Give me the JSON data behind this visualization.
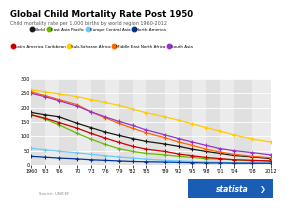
{
  "title": "Global Child Mortality Rate Post 1950",
  "subtitle": "Child mortality rate per 1,000 births by world region 1960-2012",
  "years": [
    1960,
    1963,
    1966,
    1970,
    1973,
    1976,
    1979,
    1982,
    1985,
    1989,
    1992,
    1995,
    1998,
    2001,
    2004,
    2008,
    2012
  ],
  "series": {
    "World": {
      "color": "#1a1a1a",
      "values": [
        183,
        175,
        168,
        145,
        130,
        115,
        103,
        92,
        82,
        73,
        65,
        55,
        47,
        40,
        33,
        28,
        22
      ]
    },
    "East Asia Pacific": {
      "color": "#66bb00",
      "values": [
        175,
        160,
        140,
        110,
        90,
        72,
        57,
        47,
        40,
        35,
        30,
        26,
        22,
        20,
        18,
        15,
        13
      ]
    },
    "Europe Central Asia": {
      "color": "#66ccff",
      "values": [
        58,
        53,
        48,
        42,
        37,
        32,
        28,
        24,
        20,
        16,
        14,
        12,
        10,
        9,
        8,
        7,
        6
      ]
    },
    "North America": {
      "color": "#003399",
      "values": [
        30,
        27,
        24,
        21,
        18,
        16,
        14,
        12,
        11,
        10,
        9,
        8,
        7,
        7,
        6,
        6,
        6
      ]
    },
    "Latin America Caribbean": {
      "color": "#cc0000",
      "values": [
        175,
        163,
        148,
        128,
        110,
        94,
        79,
        65,
        55,
        47,
        38,
        32,
        26,
        22,
        18,
        16,
        14
      ]
    },
    "Sub-Saharan Africa": {
      "color": "#ffcc00",
      "values": [
        262,
        255,
        248,
        238,
        228,
        218,
        208,
        195,
        182,
        168,
        156,
        143,
        130,
        118,
        105,
        90,
        80
      ]
    },
    "Middle East North Africa": {
      "color": "#ff6600",
      "values": [
        255,
        242,
        228,
        210,
        185,
        165,
        145,
        128,
        112,
        95,
        80,
        68,
        55,
        45,
        37,
        30,
        25
      ]
    },
    "South Asia": {
      "color": "#9933cc",
      "values": [
        250,
        238,
        224,
        205,
        185,
        168,
        152,
        138,
        122,
        105,
        92,
        80,
        68,
        57,
        50,
        43,
        35
      ]
    }
  },
  "legend_row1": [
    "World",
    "East Asia Pacific",
    "Europe Central Asia",
    "North America"
  ],
  "legend_row2": [
    "Latin America Caribbean",
    "Sub-Saharan Africa",
    "Middle East North Africa",
    "South Asia"
  ],
  "xlim": [
    1960,
    2012
  ],
  "ylim": [
    0,
    300
  ],
  "yticks": [
    0,
    50,
    100,
    150,
    200,
    250,
    300
  ],
  "xtick_labels": [
    "1960",
    "'63",
    "'66",
    "70",
    "'73",
    "'76",
    "'79",
    "'82",
    "'85",
    "'89",
    "'92",
    "'95",
    "'98",
    "'01",
    "'04",
    "'08",
    "2012"
  ],
  "source": "Source: UNICEF",
  "background_color": "#ffffff",
  "plot_bg_color": "#e8e8e8",
  "statista_color": "#1a5db5"
}
